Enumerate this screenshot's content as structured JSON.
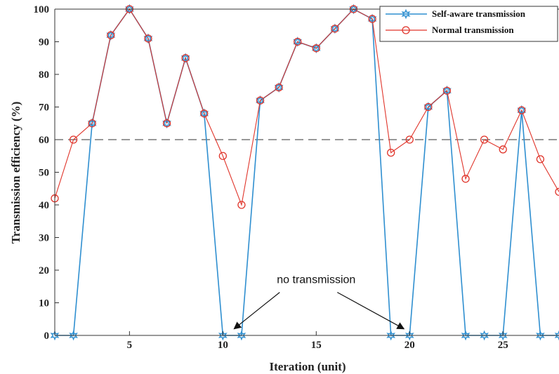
{
  "chart_data": {
    "type": "line",
    "xlabel": "Iteration (unit)",
    "ylabel": "Transmission efficiency (%)",
    "xlim": [
      1,
      28
    ],
    "ylim": [
      0,
      100
    ],
    "xticks": [
      5,
      10,
      15,
      20,
      25
    ],
    "yticks": [
      0,
      10,
      20,
      30,
      40,
      50,
      60,
      70,
      80,
      90,
      100
    ],
    "threshold": 60,
    "legend_position": "top-right",
    "x": [
      1,
      2,
      3,
      4,
      5,
      6,
      7,
      8,
      9,
      10,
      11,
      12,
      13,
      14,
      15,
      16,
      17,
      18,
      19,
      20,
      21,
      22,
      23,
      24,
      25,
      26,
      27,
      28
    ],
    "series": [
      {
        "name": "Self-aware transmission",
        "color": "#2f8fd0",
        "marker": "star",
        "values": [
          0,
          0,
          65,
          92,
          100,
          91,
          65,
          85,
          68,
          0,
          0,
          72,
          76,
          90,
          88,
          94,
          100,
          97,
          0,
          0,
          70,
          75,
          0,
          0,
          0,
          69,
          0,
          0
        ]
      },
      {
        "name": "Normal transmission",
        "color": "#e0352b",
        "marker": "circle",
        "values": [
          42,
          60,
          65,
          92,
          100,
          91,
          65,
          85,
          68,
          55,
          40,
          72,
          76,
          90,
          88,
          94,
          100,
          97,
          56,
          60,
          70,
          75,
          48,
          60,
          57,
          69,
          54,
          44
        ]
      }
    ],
    "annotation": {
      "text": "no transmission",
      "anchor_x": 15,
      "anchor_y": 16,
      "arrows_to": [
        {
          "x": 10.6,
          "y": 2
        },
        {
          "x": 19.7,
          "y": 2
        }
      ]
    }
  }
}
